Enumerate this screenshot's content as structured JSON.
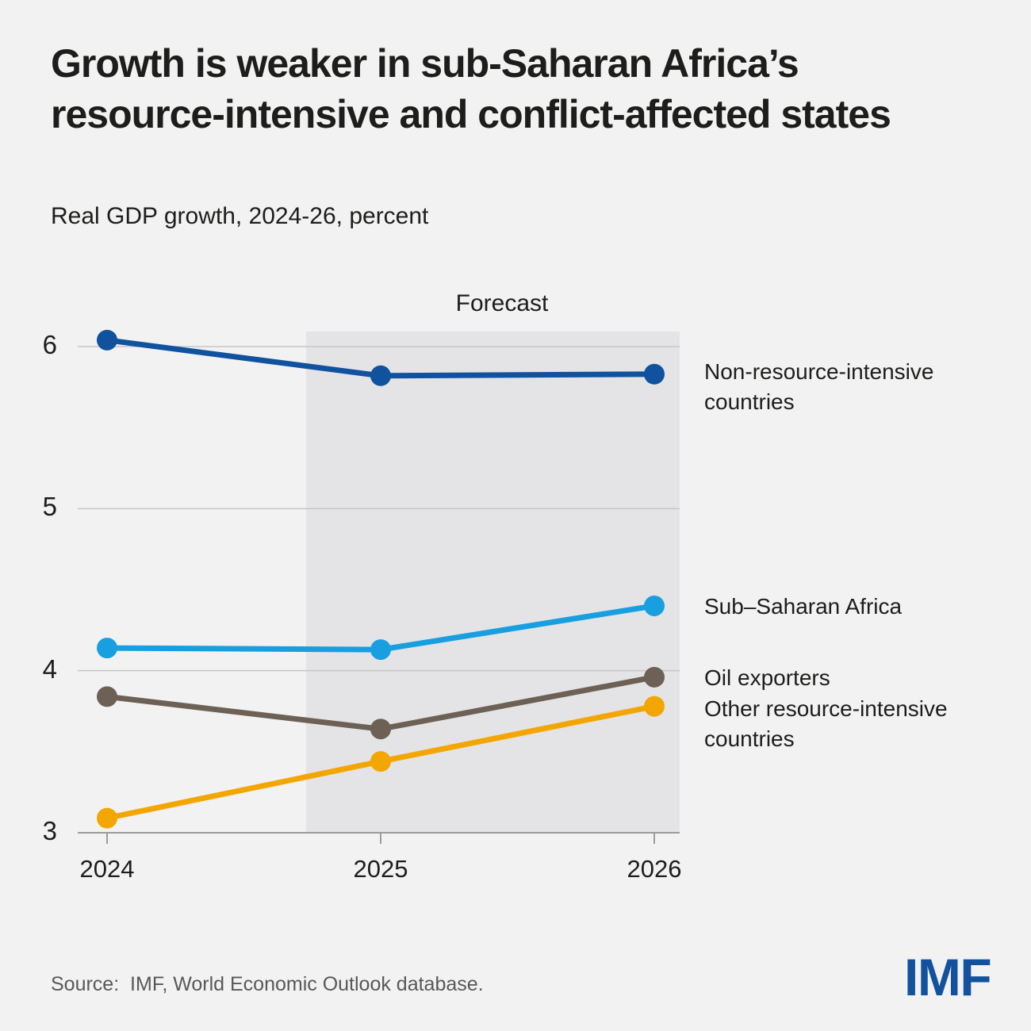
{
  "title": {
    "line1": "Growth is weaker in sub-Saharan Africa’s",
    "line2": "resource-intensive and conflict-affected states"
  },
  "subtitle": "Real GDP growth, 2024-26, percent",
  "source": "Source:  IMF, World Economic Outlook database.",
  "logo": "IMF",
  "colors": {
    "background": "#f2f2f3",
    "forecast_band": "#e4e4e6",
    "gridline": "#c6c6c8",
    "axis": "#9c9c9e",
    "title_text": "#1d1d1b",
    "muted_text": "#58585a",
    "logo_blue": "#14519d"
  },
  "chart_data": {
    "type": "line",
    "x": [
      2024,
      2025,
      2026
    ],
    "x_tick_labels": [
      "2024",
      "2025",
      "2026"
    ],
    "xlabel": "",
    "ylabel": "percent",
    "y_ticks": [
      6,
      5,
      4,
      3
    ],
    "ylim": [
      3,
      6.1
    ],
    "grid": "horizontal",
    "legend_position": "right-annotations",
    "forecast_band": {
      "label": "Forecast",
      "x_start": 2024.73,
      "x_end": 2026.09
    },
    "series": [
      {
        "name": "Non-resource-intensive countries",
        "color": "#10529e",
        "values": [
          6.04,
          5.82,
          5.83
        ]
      },
      {
        "name": "Sub–Saharan Africa",
        "color": "#189fe0",
        "values": [
          4.14,
          4.13,
          4.4
        ]
      },
      {
        "name": "Oil exporters",
        "color": "#6d6156",
        "values": [
          3.84,
          3.64,
          3.96
        ]
      },
      {
        "name": "Other resource-intensive countries",
        "color": "#f3a600",
        "values": [
          3.09,
          3.44,
          3.78
        ]
      }
    ]
  }
}
